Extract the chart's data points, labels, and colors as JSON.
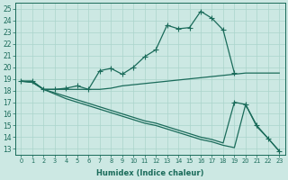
{
  "xlabel": "Humidex (Indice chaleur)",
  "background_color": "#cce8e3",
  "grid_color": "#aad4cc",
  "line_color": "#1a6b5a",
  "xlim": [
    -0.5,
    23.5
  ],
  "ylim": [
    12.5,
    25.5
  ],
  "xticks": [
    0,
    1,
    2,
    3,
    4,
    5,
    6,
    7,
    8,
    9,
    10,
    11,
    12,
    13,
    14,
    15,
    16,
    17,
    18,
    19,
    20,
    21,
    22,
    23
  ],
  "yticks": [
    13,
    14,
    15,
    16,
    17,
    18,
    19,
    20,
    21,
    22,
    23,
    24,
    25
  ],
  "line1_x": [
    0,
    1,
    2,
    3,
    4,
    5,
    6,
    7,
    8,
    9,
    10,
    11,
    12,
    13,
    14,
    15,
    16,
    17,
    18,
    19
  ],
  "line1_y": [
    18.8,
    18.8,
    18.1,
    18.1,
    18.2,
    18.4,
    18.1,
    19.7,
    19.9,
    19.4,
    20.0,
    20.9,
    21.5,
    23.6,
    23.3,
    23.4,
    24.8,
    24.2,
    23.2,
    19.5
  ],
  "line2_x": [
    0,
    1,
    2,
    3,
    4,
    5,
    6,
    7,
    8,
    9,
    10,
    11,
    12,
    13,
    14,
    15,
    16,
    17,
    18,
    19,
    20,
    21,
    22,
    23
  ],
  "line2_y": [
    18.8,
    18.8,
    18.1,
    18.1,
    18.1,
    18.1,
    18.1,
    18.1,
    18.2,
    18.4,
    18.5,
    18.6,
    18.7,
    18.8,
    18.9,
    19.0,
    19.1,
    19.2,
    19.3,
    19.4,
    19.5,
    19.5,
    19.5,
    19.5
  ],
  "line3_x": [
    0,
    1,
    2,
    3,
    4,
    5,
    6,
    7,
    8,
    9,
    10,
    11,
    12,
    13,
    14,
    15,
    16,
    17,
    18,
    19,
    20,
    21,
    22,
    23
  ],
  "line3_y": [
    18.8,
    18.7,
    18.1,
    17.8,
    17.5,
    17.2,
    16.9,
    16.6,
    16.3,
    16.0,
    15.7,
    15.4,
    15.2,
    14.9,
    14.6,
    14.3,
    14.0,
    13.8,
    13.5,
    17.0,
    16.8,
    15.0,
    13.9,
    12.8
  ],
  "line4_x": [
    0,
    1,
    2,
    3,
    4,
    5,
    6,
    7,
    8,
    9,
    10,
    11,
    12,
    13,
    14,
    15,
    16,
    17,
    18,
    19,
    20,
    21,
    22,
    23
  ],
  "line4_y": [
    18.8,
    18.7,
    18.1,
    17.7,
    17.3,
    17.0,
    16.7,
    16.4,
    16.1,
    15.8,
    15.5,
    15.2,
    15.0,
    14.7,
    14.4,
    14.1,
    13.8,
    13.6,
    13.3,
    13.1,
    16.8,
    14.9,
    13.9,
    12.8
  ]
}
